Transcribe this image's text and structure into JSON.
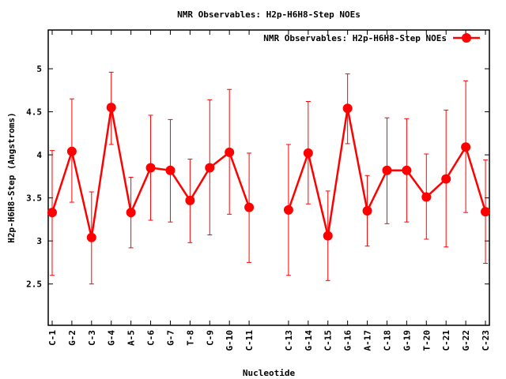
{
  "chart_data": {
    "type": "line",
    "title": "NMR Observables: H2p-H6H8-Step NOEs",
    "xlabel": "Nucleotide",
    "ylabel": "H2p-H6H8-Step (Angstroms)",
    "legend": {
      "label": "NMR Observables: H2p-H6H8-Step NOEs",
      "placement": "top-right"
    },
    "series_color": "#ff0000",
    "xlim": [
      0.8,
      23.2
    ],
    "ylim": [
      2.02,
      5.45
    ],
    "yticks": [
      {
        "value": 2.5,
        "label": "2.5"
      },
      {
        "value": 3,
        "label": "3"
      },
      {
        "value": 3.5,
        "label": "3.5"
      },
      {
        "value": 4,
        "label": "4"
      },
      {
        "value": 4.5,
        "label": "4.5"
      },
      {
        "value": 5,
        "label": "5"
      }
    ],
    "points": [
      {
        "x": 1,
        "label": "C-1",
        "y": 3.33,
        "ylow": 2.6,
        "yhigh": 4.05
      },
      {
        "x": 2,
        "label": "G-2",
        "y": 4.04,
        "ylow": 3.45,
        "yhigh": 4.65
      },
      {
        "x": 3,
        "label": "C-3",
        "y": 3.04,
        "ylow": 2.5,
        "yhigh": 3.57
      },
      {
        "x": 4,
        "label": "G-4",
        "y": 4.55,
        "ylow": 4.12,
        "yhigh": 4.96
      },
      {
        "x": 5,
        "label": "A-5",
        "y": 3.33,
        "ylow": 2.92,
        "yhigh": 3.74
      },
      {
        "x": 6,
        "label": "C-6",
        "y": 3.85,
        "ylow": 3.24,
        "yhigh": 4.46
      },
      {
        "x": 7,
        "label": "G-7",
        "y": 3.82,
        "ylow": 3.22,
        "yhigh": 4.41
      },
      {
        "x": 8,
        "label": "T-8",
        "y": 3.47,
        "ylow": 2.98,
        "yhigh": 3.95
      },
      {
        "x": 9,
        "label": "C-9",
        "y": 3.85,
        "ylow": 3.07,
        "yhigh": 4.64
      },
      {
        "x": 10,
        "label": "G-10",
        "y": 4.03,
        "ylow": 3.31,
        "yhigh": 4.76
      },
      {
        "x": 11,
        "label": "C-11",
        "y": 3.39,
        "ylow": 2.75,
        "yhigh": 4.02
      },
      {
        "x": 13,
        "label": "C-13",
        "y": 3.36,
        "ylow": 2.6,
        "yhigh": 4.12
      },
      {
        "x": 14,
        "label": "G-14",
        "y": 4.02,
        "ylow": 3.43,
        "yhigh": 4.62
      },
      {
        "x": 15,
        "label": "C-15",
        "y": 3.06,
        "ylow": 2.54,
        "yhigh": 3.58
      },
      {
        "x": 16,
        "label": "G-16",
        "y": 4.54,
        "ylow": 4.13,
        "yhigh": 4.94
      },
      {
        "x": 17,
        "label": "A-17",
        "y": 3.35,
        "ylow": 2.94,
        "yhigh": 3.76
      },
      {
        "x": 18,
        "label": "C-18",
        "y": 3.82,
        "ylow": 3.2,
        "yhigh": 4.43
      },
      {
        "x": 19,
        "label": "G-19",
        "y": 3.82,
        "ylow": 3.22,
        "yhigh": 4.42
      },
      {
        "x": 20,
        "label": "T-20",
        "y": 3.51,
        "ylow": 3.02,
        "yhigh": 4.01
      },
      {
        "x": 21,
        "label": "C-21",
        "y": 3.72,
        "ylow": 2.93,
        "yhigh": 4.52
      },
      {
        "x": 22,
        "label": "G-22",
        "y": 4.09,
        "ylow": 3.33,
        "yhigh": 4.86
      },
      {
        "x": 23,
        "label": "C-23",
        "y": 3.34,
        "ylow": 2.74,
        "yhigh": 3.94
      }
    ]
  }
}
